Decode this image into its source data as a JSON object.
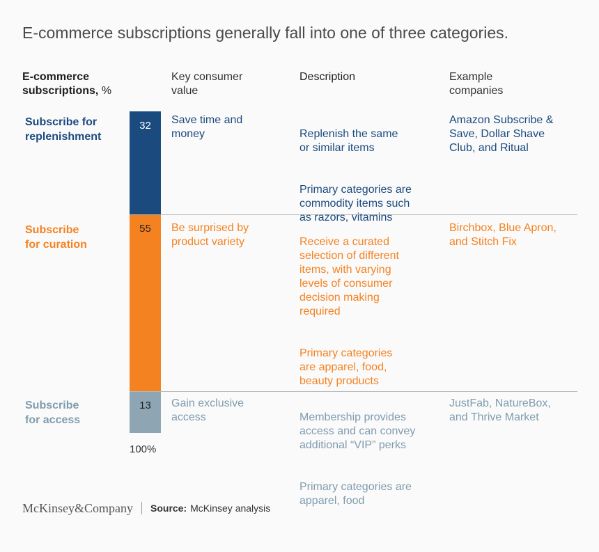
{
  "title": "E-commerce subscriptions generally fall into one of three categories.",
  "headers": {
    "subscriptions": "E-commerce\nsubscriptions,",
    "subscriptions_unit": "%",
    "value": "Key consumer\nvalue",
    "description": "Description",
    "examples": "Example\ncompanies"
  },
  "rows": [
    {
      "label": "Subscribe for\nreplenishment",
      "value_text": "Save time and\nmoney",
      "description": [
        "Replenish the same\nor similar items",
        "Primary categories are\ncommodity items such\nas razors, vitamins"
      ],
      "examples": "Amazon Subscribe &\nSave, Dollar Shave\nClub, and Ritual"
    },
    {
      "label": "Subscribe\nfor curation",
      "value_text": "Be surprised by\nproduct variety",
      "description": [
        "Receive a curated\nselection of different\nitems, with varying\nlevels of consumer\ndecision making\nrequired",
        "Primary categories\nare apparel, food,\nbeauty products"
      ],
      "examples": "Birchbox, Blue Apron,\nand Stitch Fix"
    },
    {
      "label": "Subscribe\nfor access",
      "value_text": "Gain exclusive\naccess",
      "description": [
        "Membership provides\naccess and can convey\nadditional “VIP” perks",
        "Primary categories are\napparel, food"
      ],
      "examples": "JustFab, NatureBox,\nand Thrive Market"
    }
  ],
  "chart_data": {
    "type": "bar",
    "orientation": "stacked-vertical",
    "categories": [
      "Subscribe for replenishment",
      "Subscribe for curation",
      "Subscribe for access"
    ],
    "values": [
      32,
      55,
      13
    ],
    "unit": "%",
    "total_label": "100%",
    "colors": [
      "#1b4a7f",
      "#f58220",
      "#8ea6b4"
    ]
  },
  "colors": {
    "replenishment": "#1b4a7f",
    "curation": "#f58220",
    "access": "#8ea6b4",
    "access_text": "#7f9cae"
  },
  "footer": {
    "logo": "McKinsey&Company",
    "source_label": "Source:",
    "source_text": "McKinsey analysis"
  }
}
